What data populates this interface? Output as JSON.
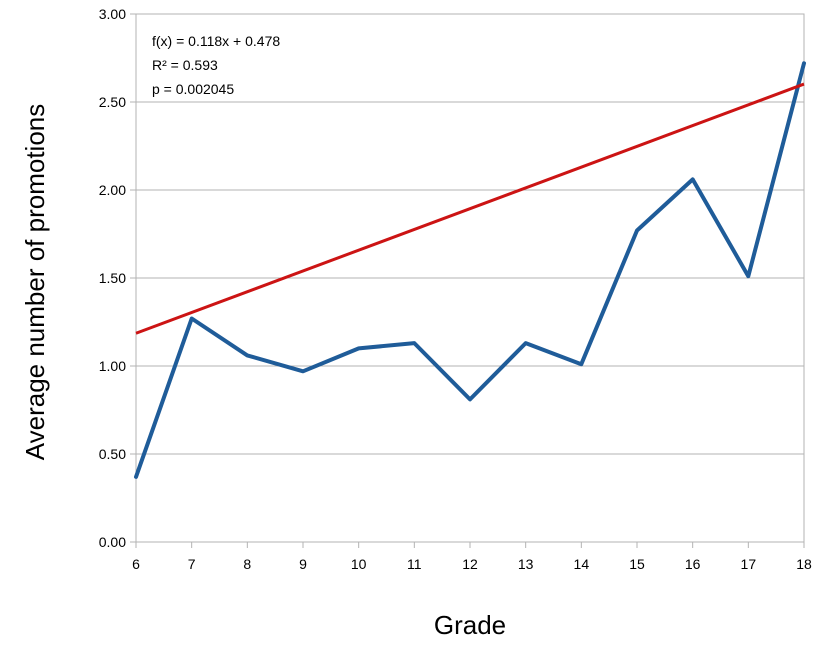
{
  "chart_data": {
    "type": "line",
    "xlabel": "Grade",
    "ylabel": "Average number of promotions",
    "x": [
      6,
      7,
      8,
      9,
      10,
      11,
      12,
      13,
      14,
      15,
      16,
      17,
      18
    ],
    "xlim": [
      6,
      18
    ],
    "ylim": [
      0,
      3
    ],
    "y_ticks": [
      "0.00",
      "0.50",
      "1.00",
      "1.50",
      "2.00",
      "2.50",
      "3.00"
    ],
    "x_ticks": [
      "6",
      "7",
      "8",
      "9",
      "10",
      "11",
      "12",
      "13",
      "14",
      "15",
      "16",
      "17",
      "18"
    ],
    "grid": "horizontal",
    "series": [
      {
        "values": [
          0.37,
          1.27,
          1.06,
          0.97,
          1.1,
          1.13,
          0.81,
          1.13,
          1.01,
          1.77,
          2.06,
          1.51,
          2.72
        ],
        "color": "#1f5c99"
      }
    ],
    "trendline": {
      "slope": 0.118,
      "intercept": 0.478,
      "color": "#cc1414"
    },
    "annotations": [
      "f(x) = 0.118x + 0.478",
      "R² = 0.593",
      "p = 0.002045"
    ]
  }
}
